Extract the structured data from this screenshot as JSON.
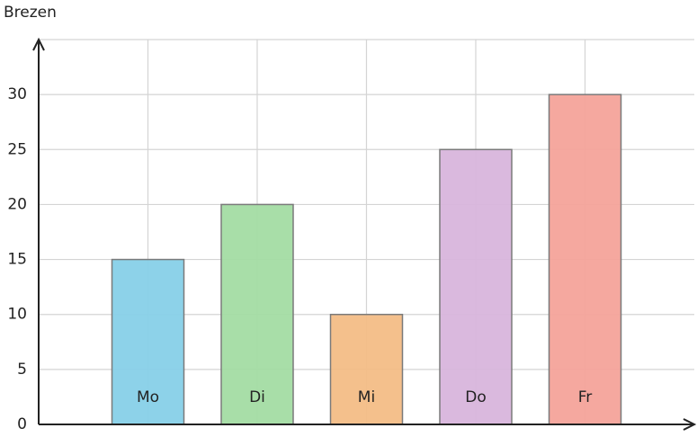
{
  "chart_data": {
    "type": "bar",
    "y_label": "Brezen",
    "categories": [
      "Mo",
      "Di",
      "Mi",
      "Do",
      "Fr"
    ],
    "values": [
      15,
      20,
      10,
      25,
      30
    ],
    "colors": [
      "#87d0e8",
      "#a3dca3",
      "#f3bd86",
      "#d8b5dc",
      "#f4a39a"
    ],
    "ylim": [
      0,
      35
    ],
    "yticks": [
      0,
      5,
      10,
      15,
      20,
      25,
      30
    ],
    "grid": true
  }
}
